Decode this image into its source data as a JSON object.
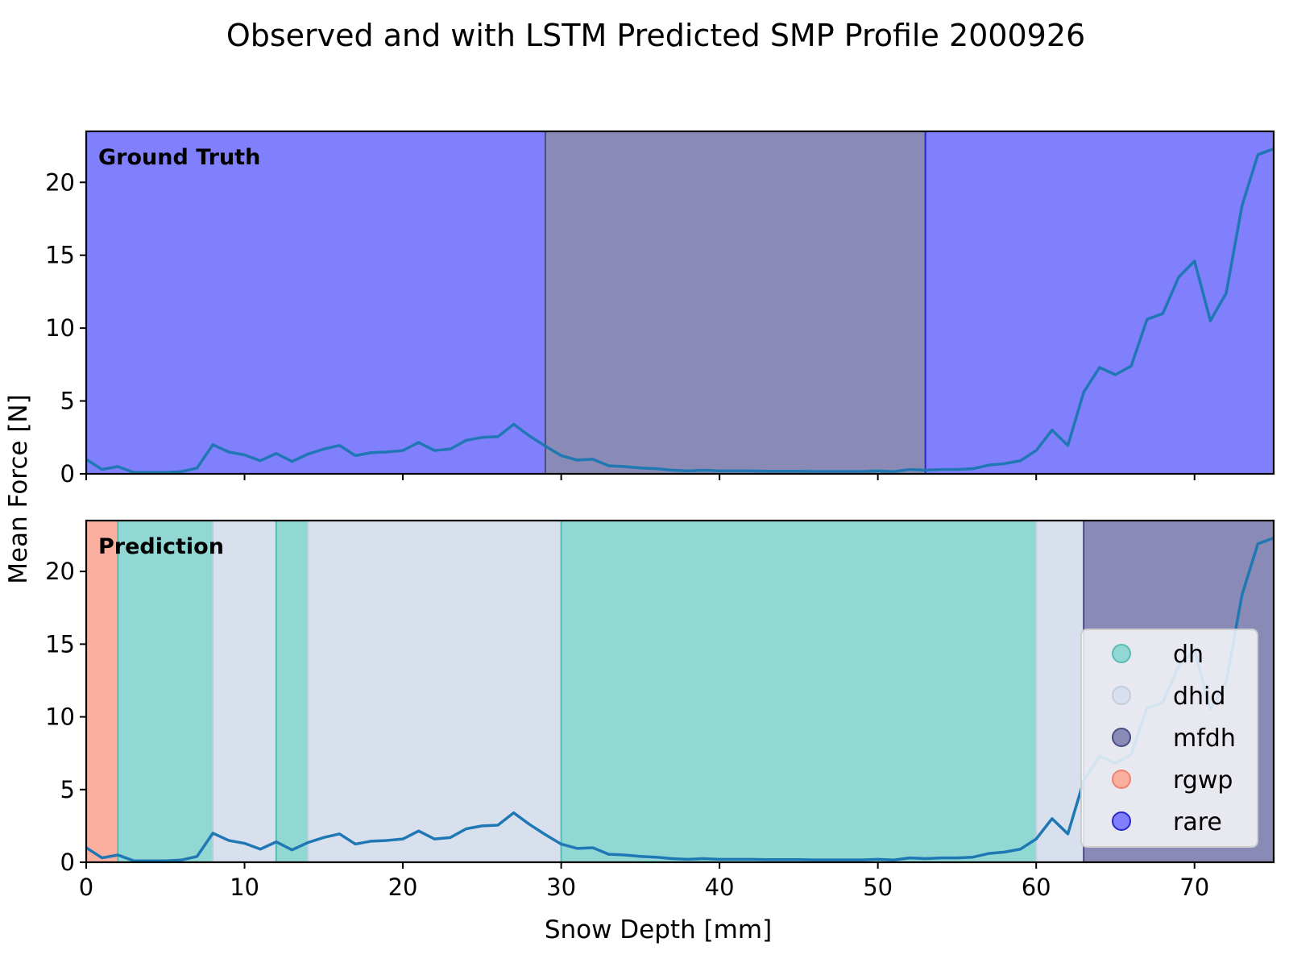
{
  "chart_data": {
    "type": "line",
    "title": "Observed and with LSTM Predicted SMP Profile 2000926",
    "xlabel": "Snow Depth [mm]",
    "ylabel": "Mean Force [N]",
    "xlim": [
      0,
      75
    ],
    "ylim": [
      0,
      23.5
    ],
    "x_ticks": [
      0,
      10,
      20,
      30,
      40,
      50,
      60,
      70
    ],
    "y_ticks": [
      0,
      5,
      10,
      15,
      20
    ],
    "grid": false,
    "legend_position": "lower right (bottom panel)",
    "line_color": "#1f77b4",
    "series": [
      {
        "x": [
          0,
          1,
          2,
          3,
          4,
          5,
          6,
          7,
          8,
          9,
          10,
          11,
          12,
          13,
          14,
          15,
          16,
          17,
          18,
          19,
          20,
          21,
          22,
          23,
          24,
          25,
          26,
          27,
          28,
          29,
          30,
          31,
          32,
          33,
          34,
          35,
          36,
          37,
          38,
          39,
          40,
          41,
          42,
          43,
          44,
          45,
          46,
          47,
          48,
          49,
          50,
          51,
          52,
          53,
          54,
          55,
          56,
          57,
          58,
          59,
          60,
          61,
          62,
          63,
          64,
          65,
          66,
          67,
          68,
          69,
          70,
          71,
          72,
          73,
          74,
          75
        ],
        "values": [
          1.0,
          0.3,
          0.5,
          0.1,
          0.1,
          0.1,
          0.15,
          0.4,
          2.0,
          1.5,
          1.3,
          0.9,
          1.4,
          0.85,
          1.35,
          1.7,
          1.95,
          1.25,
          1.45,
          1.5,
          1.6,
          2.15,
          1.6,
          1.7,
          2.3,
          2.5,
          2.55,
          3.4,
          2.6,
          1.9,
          1.25,
          0.95,
          1.0,
          0.55,
          0.5,
          0.4,
          0.35,
          0.25,
          0.2,
          0.25,
          0.2,
          0.2,
          0.2,
          0.18,
          0.18,
          0.18,
          0.16,
          0.16,
          0.16,
          0.16,
          0.2,
          0.15,
          0.3,
          0.25,
          0.3,
          0.3,
          0.35,
          0.6,
          0.7,
          0.9,
          1.6,
          3.0,
          1.95,
          5.6,
          7.3,
          6.8,
          7.4,
          10.6,
          11.0,
          13.5,
          14.6,
          10.5,
          12.4,
          18.4,
          21.9,
          22.3
        ]
      }
    ],
    "panels": [
      {
        "label": "Ground Truth",
        "segments": [
          {
            "start": 0,
            "end": 29,
            "class": "rare"
          },
          {
            "start": 29,
            "end": 53,
            "class": "mfdh"
          },
          {
            "start": 53,
            "end": 75,
            "class": "rare"
          }
        ]
      },
      {
        "label": "Prediction",
        "segments": [
          {
            "start": 0,
            "end": 2,
            "class": "rgwp"
          },
          {
            "start": 2,
            "end": 8,
            "class": "dh"
          },
          {
            "start": 8,
            "end": 12,
            "class": "dhid"
          },
          {
            "start": 12,
            "end": 14,
            "class": "dh"
          },
          {
            "start": 14,
            "end": 30,
            "class": "dhid"
          },
          {
            "start": 30,
            "end": 60,
            "class": "dh"
          },
          {
            "start": 60,
            "end": 63,
            "class": "dhid"
          },
          {
            "start": 63,
            "end": 75,
            "class": "mfdh"
          }
        ]
      }
    ],
    "legend": [
      {
        "name": "dh",
        "color": "#91d8d4"
      },
      {
        "name": "dhid",
        "color": "#d7e0ec"
      },
      {
        "name": "mfdh",
        "color": "#898ab5"
      },
      {
        "name": "rgwp",
        "color": "#fbaf9f"
      },
      {
        "name": "rare",
        "color": "#8080fd"
      }
    ],
    "class_colors": {
      "dh": "#91d8d4",
      "dhid": "#d7e0ec",
      "mfdh": "#898ab5",
      "rgwp": "#fbaf9f",
      "rare": "#8080fd"
    },
    "class_edge_colors": {
      "dh": "#55bdb5",
      "dhid": "#c2cddd",
      "mfdh": "#4a4d85",
      "rgwp": "#ef8070",
      "rare": "#2828cc"
    }
  }
}
